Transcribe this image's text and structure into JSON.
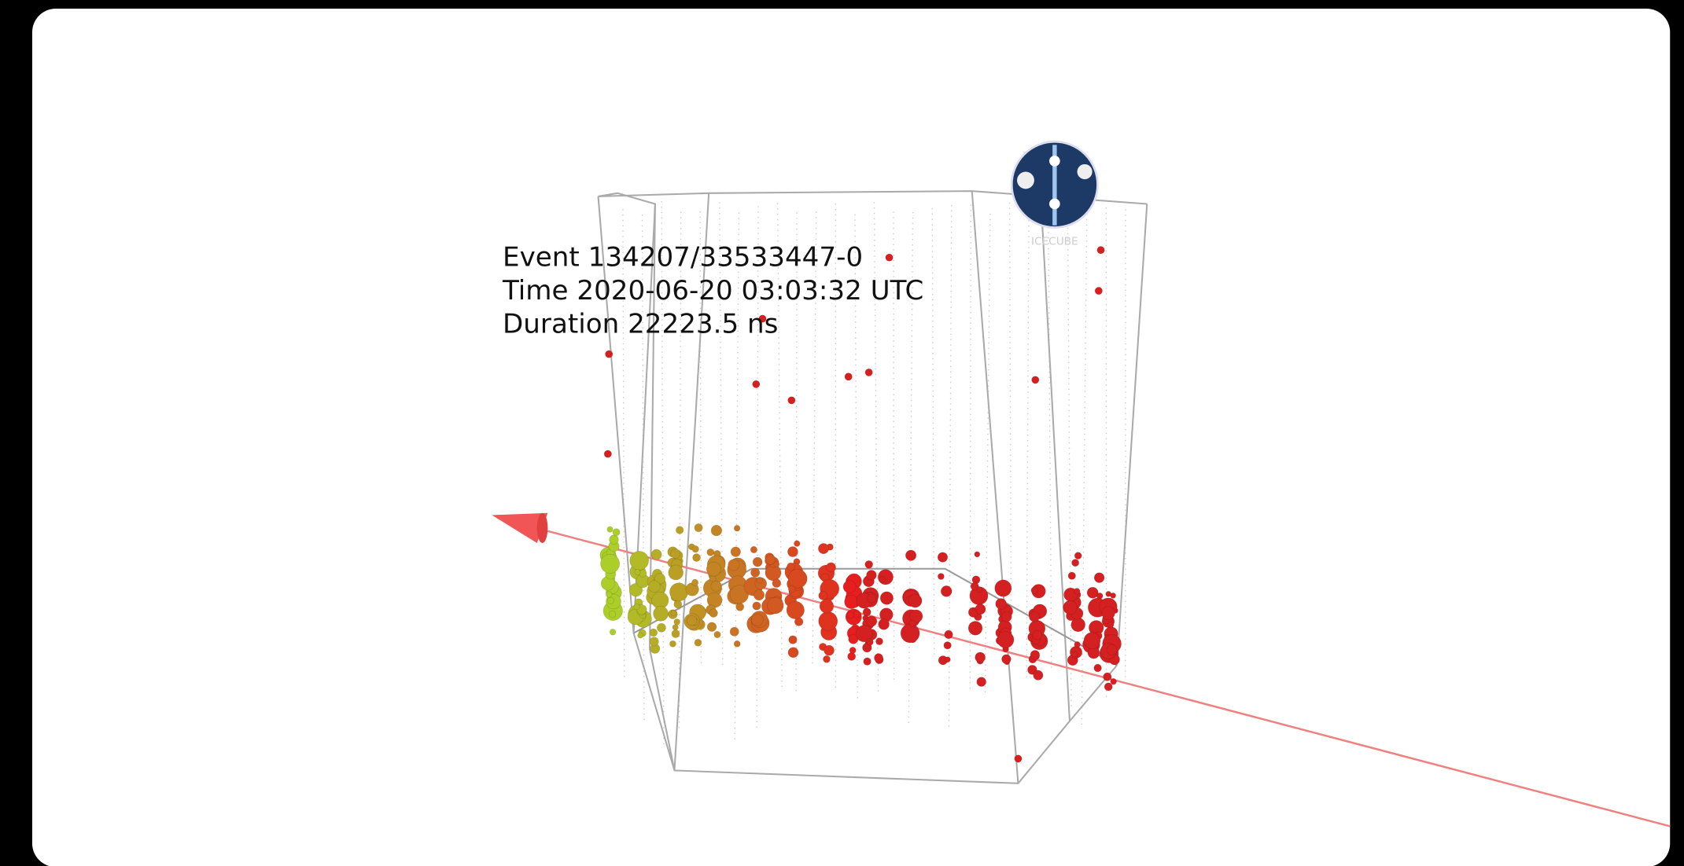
{
  "event_info": {
    "lines": [
      "Event 134207/33533447-0",
      "Time 2020-06-20 03:03:32 UTC",
      "Duration 22223.5 ns"
    ]
  },
  "logo": {
    "label": "ICECUBE"
  }
}
